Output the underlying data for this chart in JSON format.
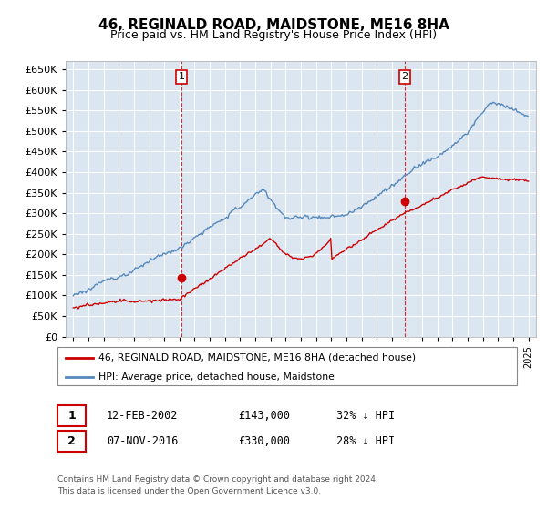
{
  "title": "46, REGINALD ROAD, MAIDSTONE, ME16 8HA",
  "subtitle": "Price paid vs. HM Land Registry's House Price Index (HPI)",
  "background_color": "#ffffff",
  "plot_bg_color": "#dce6f1",
  "grid_color": "#ffffff",
  "ylim": [
    0,
    670000
  ],
  "yticks": [
    0,
    50000,
    100000,
    150000,
    200000,
    250000,
    300000,
    350000,
    400000,
    450000,
    500000,
    550000,
    600000,
    650000
  ],
  "xstart_year": 1995,
  "xend_year": 2025,
  "purchase1_date": "12-FEB-2002",
  "purchase1_price": 143000,
  "purchase1_label": "32% ↓ HPI",
  "purchase1_year": 2002.12,
  "purchase2_date": "07-NOV-2016",
  "purchase2_price": 330000,
  "purchase2_label": "28% ↓ HPI",
  "purchase2_year": 2016.85,
  "red_color": "#cc0000",
  "blue_color": "#5588bb",
  "legend_label_red": "46, REGINALD ROAD, MAIDSTONE, ME16 8HA (detached house)",
  "legend_label_blue": "HPI: Average price, detached house, Maidstone",
  "footnote": "Contains HM Land Registry data © Crown copyright and database right 2024.\nThis data is licensed under the Open Government Licence v3.0."
}
